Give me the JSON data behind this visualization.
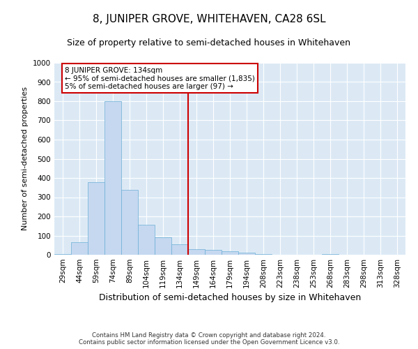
{
  "title": "8, JUNIPER GROVE, WHITEHAVEN, CA28 6SL",
  "subtitle": "Size of property relative to semi-detached houses in Whitehaven",
  "xlabel": "Distribution of semi-detached houses by size in Whitehaven",
  "ylabel": "Number of semi-detached properties",
  "footer_line1": "Contains HM Land Registry data © Crown copyright and database right 2024.",
  "footer_line2": "Contains public sector information licensed under the Open Government Licence v3.0.",
  "categories": [
    "29sqm",
    "44sqm",
    "59sqm",
    "74sqm",
    "89sqm",
    "104sqm",
    "119sqm",
    "134sqm",
    "149sqm",
    "164sqm",
    "179sqm",
    "194sqm",
    "208sqm",
    "223sqm",
    "238sqm",
    "253sqm",
    "268sqm",
    "283sqm",
    "298sqm",
    "313sqm",
    "328sqm"
  ],
  "values": [
    3,
    65,
    380,
    800,
    340,
    155,
    90,
    55,
    30,
    25,
    20,
    10,
    2,
    0,
    0,
    0,
    2,
    0,
    0,
    0,
    0
  ],
  "bar_color": "#c5d8f0",
  "bar_edge_color": "#6baed6",
  "vline_index": 7,
  "vline_color": "#cc0000",
  "annotation_text": "8 JUNIPER GROVE: 134sqm\n← 95% of semi-detached houses are smaller (1,835)\n5% of semi-detached houses are larger (97) →",
  "annotation_box_facecolor": "#ffffff",
  "annotation_box_edgecolor": "#cc0000",
  "ylim": [
    0,
    1000
  ],
  "yticks": [
    0,
    100,
    200,
    300,
    400,
    500,
    600,
    700,
    800,
    900,
    1000
  ],
  "background_color": "#dce9f5",
  "grid_color": "#ffffff",
  "title_fontsize": 11,
  "subtitle_fontsize": 9,
  "tick_fontsize": 7.5,
  "ylabel_fontsize": 8,
  "xlabel_fontsize": 9
}
